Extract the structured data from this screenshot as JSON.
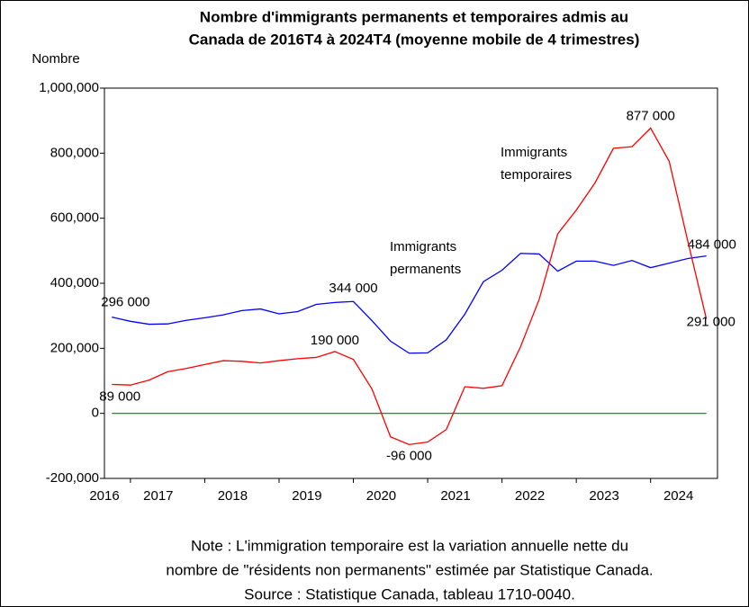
{
  "chart_data": {
    "type": "line",
    "title": [
      "Nombre d'immigrants permanents et temporaires admis au",
      "Canada de 2016T4 à 2024T4 (moyenne mobile de 4 trimestres)"
    ],
    "y_label": "Nombre",
    "note": [
      "Note : L'immigration temporaire est la variation annuelle nette du",
      "nombre de \"résidents non permanents\" estimée par Statistique Canada.",
      "Source : Statistique Canada, tableau 1710-0040."
    ],
    "x": [
      2016.75,
      2017.0,
      2017.25,
      2017.5,
      2017.75,
      2018.0,
      2018.25,
      2018.5,
      2018.75,
      2019.0,
      2019.25,
      2019.5,
      2019.75,
      2020.0,
      2020.25,
      2020.5,
      2020.75,
      2021.0,
      2021.25,
      2021.5,
      2021.75,
      2022.0,
      2022.25,
      2022.5,
      2022.75,
      2023.0,
      2023.25,
      2023.5,
      2023.75,
      2024.0,
      2024.25,
      2024.5,
      2024.75
    ],
    "series": [
      {
        "name": "Immigrants permanents",
        "color": "#0000ff",
        "values": [
          296000,
          283000,
          274000,
          275000,
          286000,
          294000,
          303000,
          316000,
          321000,
          306000,
          313000,
          335000,
          341000,
          344000,
          285000,
          222000,
          185000,
          186000,
          226000,
          305000,
          405000,
          440000,
          492000,
          490000,
          437000,
          468000,
          468000,
          455000,
          470000,
          448000,
          462000,
          476000,
          484000
        ],
        "value_labels": [
          "296 000",
          null,
          null,
          null,
          null,
          null,
          null,
          null,
          null,
          null,
          null,
          null,
          null,
          "344 000",
          null,
          null,
          null,
          null,
          null,
          null,
          null,
          null,
          null,
          null,
          null,
          null,
          null,
          null,
          null,
          null,
          null,
          null,
          "484 000"
        ]
      },
      {
        "name": "Immigrants temporaires",
        "color": "#ff0000",
        "values": [
          89000,
          87000,
          102000,
          128000,
          138000,
          150000,
          162000,
          160000,
          155000,
          162000,
          168000,
          172000,
          190000,
          166000,
          75000,
          -72000,
          -96000,
          -88000,
          -50000,
          82000,
          77000,
          85000,
          205000,
          350000,
          552000,
          625000,
          708000,
          815000,
          820000,
          877000,
          775000,
          530000,
          291000
        ],
        "value_labels": [
          "89 000",
          null,
          null,
          null,
          null,
          null,
          null,
          null,
          null,
          null,
          null,
          null,
          "190 000",
          null,
          null,
          null,
          "-96 000",
          null,
          null,
          null,
          null,
          null,
          null,
          null,
          null,
          null,
          null,
          null,
          null,
          "877 000",
          null,
          null,
          "291 000"
        ]
      }
    ],
    "reference_line": {
      "y": 0,
      "color": "#008000"
    },
    "xlim": [
      2016.65,
      2024.9
    ],
    "xticks": [
      2016,
      2017,
      2018,
      2019,
      2020,
      2021,
      2022,
      2023,
      2024
    ],
    "ylim": [
      -200000,
      1000000
    ],
    "yticks": [
      {
        "value": -200000,
        "label": "-200,000"
      },
      0,
      {
        "value": 200000,
        "label": "200,000"
      },
      {
        "value": 400000,
        "label": "400,000"
      },
      {
        "value": 600000,
        "label": "600,000"
      },
      {
        "value": 800000,
        "label": "800,000"
      },
      {
        "value": 1000000,
        "label": "1,000,000"
      }
    ]
  }
}
